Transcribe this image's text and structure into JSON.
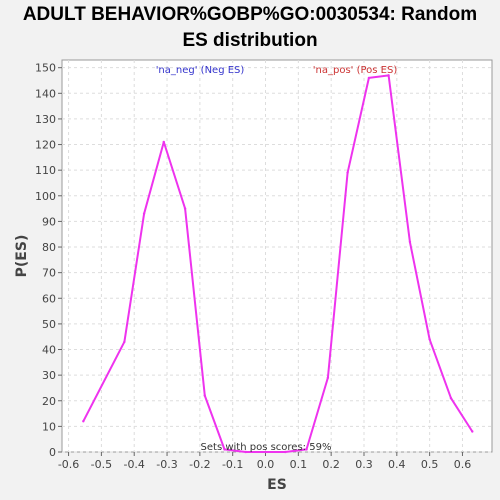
{
  "chart_data": {
    "type": "line",
    "title_lines": [
      "ADULT BEHAVIOR%GOBP%GO:0030534: Random",
      "ES distribution"
    ],
    "xlabel": "ES",
    "ylabel": "P(ES)",
    "xlim": [
      -0.62,
      0.69
    ],
    "ylim": [
      0,
      153
    ],
    "xticks": [
      -0.6,
      -0.5,
      -0.4,
      -0.3,
      -0.2,
      -0.1,
      0.0,
      0.1,
      0.2,
      0.3,
      0.4,
      0.5,
      0.6
    ],
    "xtick_labels": [
      "-0.6",
      "-0.5",
      "-0.4",
      "-0.3",
      "-0.2",
      "-0.1",
      "0.0",
      "0.1",
      "0.2",
      "0.3",
      "0.4",
      "0.5",
      "0.6"
    ],
    "yticks": [
      0,
      10,
      20,
      30,
      40,
      50,
      60,
      70,
      80,
      90,
      100,
      110,
      120,
      130,
      140,
      150
    ],
    "ytick_labels": [
      "0",
      "10",
      "20",
      "30",
      "40",
      "50",
      "60",
      "70",
      "80",
      "90",
      "100",
      "110",
      "120",
      "130",
      "140",
      "150"
    ],
    "grid": true,
    "series": [
      {
        "name": "ES distribution",
        "color": "#ee33ee",
        "x": [
          -0.555,
          -0.43,
          -0.37,
          -0.31,
          -0.245,
          -0.185,
          -0.125,
          -0.06,
          0.0,
          0.06,
          0.125,
          0.19,
          0.25,
          0.315,
          0.375,
          0.44,
          0.5,
          0.565,
          0.63
        ],
        "y": [
          12,
          43,
          93,
          121,
          95,
          22,
          1,
          0,
          0,
          0,
          1,
          29,
          109,
          146,
          147,
          82,
          44,
          21,
          8
        ]
      }
    ],
    "legend": {
      "neg_label": "'na_neg' (Neg ES)",
      "pos_label": "'na_pos' (Pos ES)",
      "neg_color": "#3333cc",
      "pos_color": "#cc3333",
      "placement": "top"
    },
    "annotation": "Sets with pos scores: 59%"
  }
}
